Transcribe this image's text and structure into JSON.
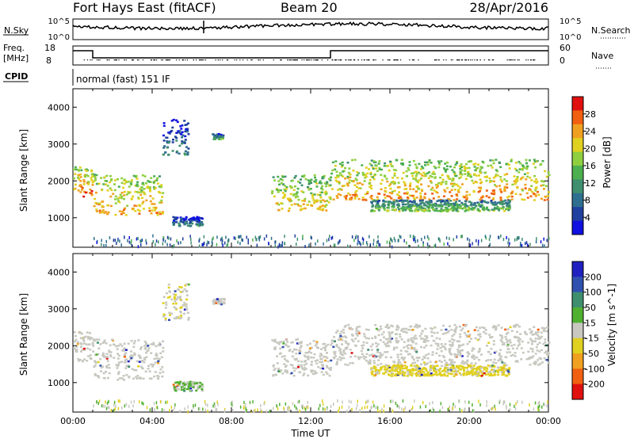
{
  "header": {
    "title": "Fort Hays East (fitACF)",
    "beam": "Beam 20",
    "date": "28/Apr/2016"
  },
  "strip": {
    "nsky_label": "N.Sky",
    "nsky_ticks": [
      "10^5",
      "10^0"
    ],
    "nsearch_label": "N.Search",
    "nsearch_ticks": [
      "10^5",
      "10^0"
    ],
    "freq_label": "Freq.",
    "freq_unit": "[MHz]",
    "freq_ticks": [
      "18",
      "8"
    ],
    "nave_label": "Nave",
    "nave_ticks": [
      "60",
      "0"
    ],
    "cpid_label": "CPID",
    "cpid_value": "normal (fast) 151 IF"
  },
  "colors": {
    "power": [
      "#1010e0",
      "#2040a0",
      "#2f6f8f",
      "#3f8f6f",
      "#4caf50",
      "#8fcf3f",
      "#e0d020",
      "#f0a020",
      "#f06010",
      "#e01010"
    ],
    "velocity": [
      "#2020c0",
      "#3050b0",
      "#3f8f6f",
      "#50b030",
      "#c8c8c0",
      "#e0d020",
      "#f0a020",
      "#f06010",
      "#e01010"
    ],
    "gray": "#c8c8c0"
  },
  "chart_data": [
    {
      "type": "heatmap",
      "name": "Power",
      "ylabel": "Slant Range [km]",
      "yticks": [
        "1000",
        "2000",
        "3000",
        "4000"
      ],
      "ylim": [
        200,
        4500
      ],
      "colorbar_label": "Power [dB]",
      "colorbar_ticks": [
        "4",
        "8",
        "12",
        "16",
        "20",
        "24",
        "28"
      ],
      "colorbar_range": [
        0,
        32
      ],
      "bands": [
        {
          "t": [
            0.0,
            1.0
          ],
          "r": [
            1600,
            2400
          ],
          "v": 22
        },
        {
          "t": [
            1.0,
            4.5
          ],
          "r": [
            1100,
            2200
          ],
          "v": 20
        },
        {
          "t": [
            4.5,
            5.8
          ],
          "r": [
            2700,
            3700
          ],
          "v": 6
        },
        {
          "t": [
            7.0,
            7.6
          ],
          "r": [
            3150,
            3300
          ],
          "v": 10
        },
        {
          "t": [
            5.0,
            6.5
          ],
          "r": [
            800,
            1050
          ],
          "v": 6
        },
        {
          "t": [
            10.0,
            13.0
          ],
          "r": [
            1200,
            2200
          ],
          "v": 18
        },
        {
          "t": [
            13.0,
            24.0
          ],
          "r": [
            1500,
            2600
          ],
          "v": 20
        },
        {
          "t": [
            15.0,
            22.0
          ],
          "r": [
            1200,
            1500
          ],
          "v": 12
        }
      ]
    },
    {
      "type": "heatmap",
      "name": "Velocity",
      "xlabel": "Time UT",
      "xticks": [
        "00:00",
        "04:00",
        "08:00",
        "12:00",
        "16:00",
        "20:00",
        "00:00"
      ],
      "xlim": [
        0,
        24
      ],
      "ylabel": "Slant Range [km]",
      "yticks": [
        "1000",
        "2000",
        "3000",
        "4000"
      ],
      "ylim": [
        200,
        4500
      ],
      "colorbar_label": "Velocity [m s^-1]",
      "colorbar_ticks": [
        "200",
        "100",
        "50",
        "15",
        "-15",
        "-50",
        "-100",
        "-200"
      ],
      "colorbar_range": [
        -250,
        250
      ],
      "bands": [
        {
          "t": [
            0.0,
            1.0
          ],
          "r": [
            1600,
            2400
          ],
          "v": 0
        },
        {
          "t": [
            1.0,
            4.5
          ],
          "r": [
            1100,
            2200
          ],
          "v": 0
        },
        {
          "t": [
            4.5,
            5.8
          ],
          "r": [
            2700,
            3700
          ],
          "v": -20
        },
        {
          "t": [
            7.0,
            7.6
          ],
          "r": [
            3150,
            3300
          ],
          "v": 0
        },
        {
          "t": [
            5.0,
            6.5
          ],
          "r": [
            800,
            1050
          ],
          "v": 30
        },
        {
          "t": [
            10.0,
            13.0
          ],
          "r": [
            1200,
            2200
          ],
          "v": 0
        },
        {
          "t": [
            13.0,
            24.0
          ],
          "r": [
            1500,
            2600
          ],
          "v": 0
        },
        {
          "t": [
            15.0,
            22.0
          ],
          "r": [
            1200,
            1500
          ],
          "v": -40
        }
      ]
    }
  ]
}
